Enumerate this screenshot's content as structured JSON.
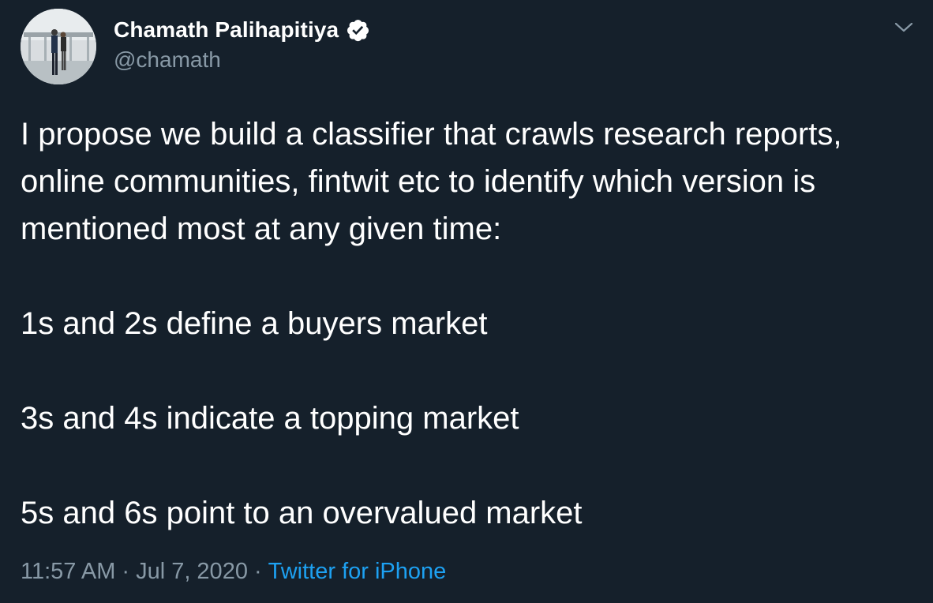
{
  "author": {
    "display_name": "Chamath Palihapitiya",
    "handle": "@chamath",
    "verified_icon": "verified-badge-icon",
    "avatar_icon": "profile-photo"
  },
  "menu": {
    "icon": "chevron-down-icon"
  },
  "tweet": {
    "paragraphs": [
      "I propose we build a classifier that crawls research reports, online communities, fintwit etc to identify which version is mentioned most at any given time:",
      "1s and 2s define a buyers market",
      "3s and 4s indicate a topping market",
      "5s and 6s point to an overvalued market"
    ]
  },
  "meta": {
    "time": "11:57 AM",
    "date": "Jul 7, 2020",
    "separator": "·",
    "source": "Twitter for iPhone"
  },
  "colors": {
    "background": "#15202b",
    "text": "#ffffff",
    "secondary": "#8899a6",
    "accent": "#1da1f2"
  }
}
